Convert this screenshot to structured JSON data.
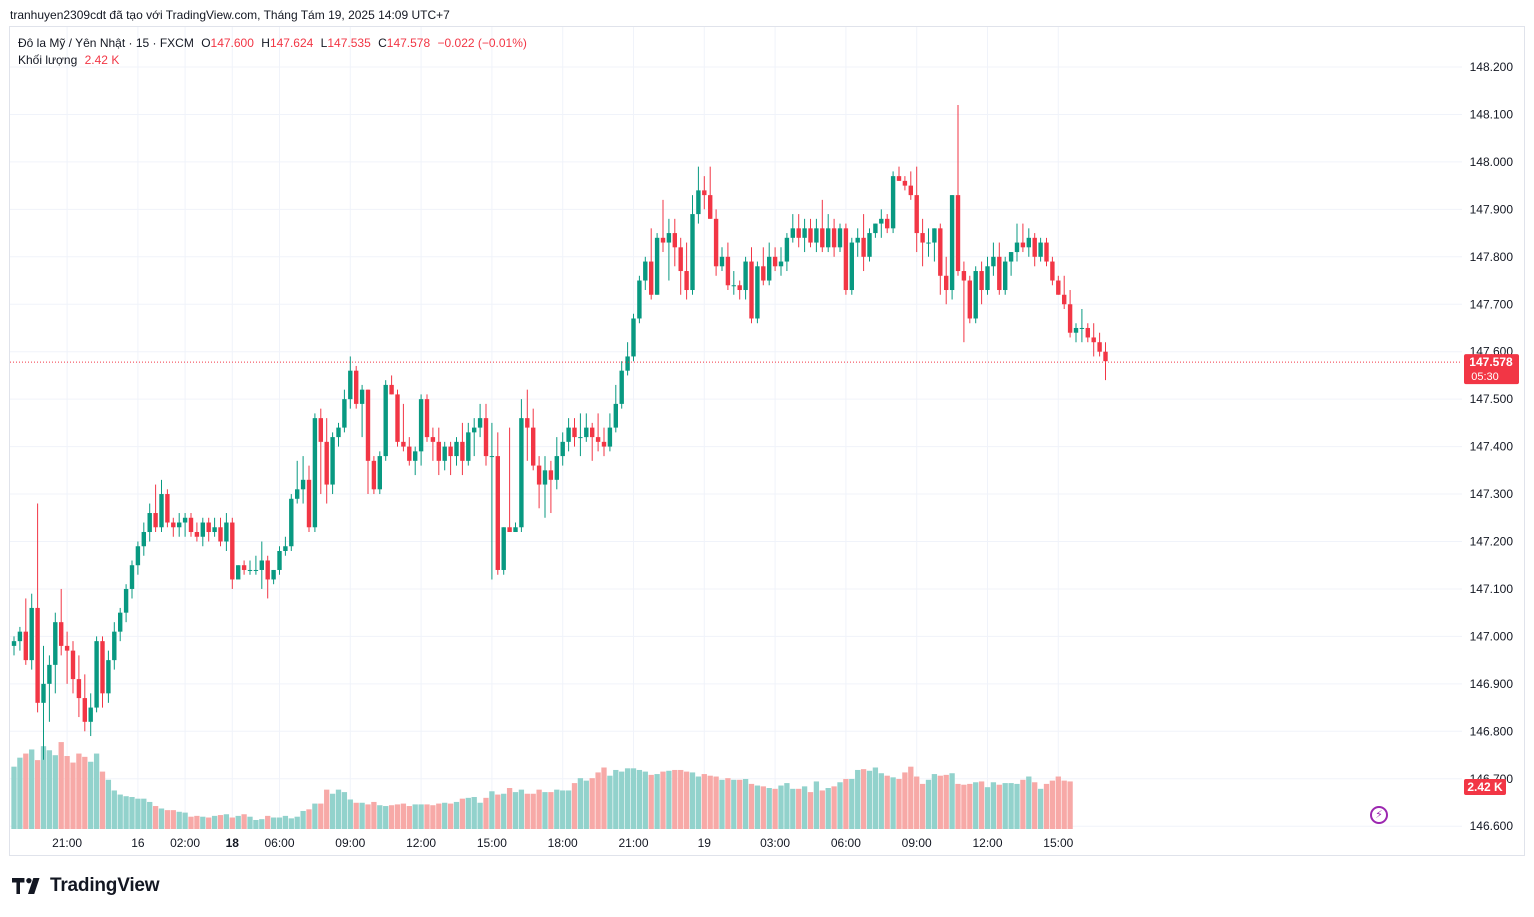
{
  "caption": "tranhuyen2309cdt đã tạo với TradingView.com, Tháng Tám 19, 2025 14:09 UTC+7",
  "legend": {
    "symbol": "Đô la Mỹ / Yên Nhật · 15 · FXCM",
    "o_label": "O",
    "o_value": "147.600",
    "h_label": "H",
    "h_value": "147.624",
    "l_label": "L",
    "l_value": "147.535",
    "c_label": "C",
    "c_value": "147.578",
    "change": "−0.022 (−0.01%)",
    "volume_label": "Khối lượng",
    "volume_value": "2.42 K"
  },
  "price_tag": {
    "price": "147.578",
    "countdown": "05:30"
  },
  "volume_tag": "2.42 K",
  "brand": "TradingView",
  "colors": {
    "up": "#089981",
    "down": "#f23645",
    "vol_up": "#92d2cc",
    "vol_down": "#f7a9a7",
    "grid": "#f0f3fa",
    "axis_text": "#131722"
  },
  "chart_data": {
    "type": "candlestick",
    "title": "Đô la Mỹ / Yên Nhật · 15 · FXCM",
    "interval": "15",
    "ylim": [
      146.6,
      148.25
    ],
    "y_ticks": [
      "148.200",
      "148.100",
      "148.000",
      "147.900",
      "147.800",
      "147.700",
      "147.600",
      "147.500",
      "147.400",
      "147.300",
      "147.200",
      "147.100",
      "147.000",
      "146.900",
      "146.800",
      "146.700",
      "146.600"
    ],
    "x_ticks": [
      {
        "label": "21:00",
        "bar": 9,
        "bold": false
      },
      {
        "label": "16",
        "bar": 21,
        "bold": false
      },
      {
        "label": "02:00",
        "bar": 29,
        "bold": false
      },
      {
        "label": "18",
        "bar": 37,
        "bold": true
      },
      {
        "label": "06:00",
        "bar": 45,
        "bold": false
      },
      {
        "label": "09:00",
        "bar": 57,
        "bold": false
      },
      {
        "label": "12:00",
        "bar": 69,
        "bold": false
      },
      {
        "label": "15:00",
        "bar": 81,
        "bold": false
      },
      {
        "label": "18:00",
        "bar": 93,
        "bold": false
      },
      {
        "label": "21:00",
        "bar": 105,
        "bold": false
      },
      {
        "label": "19",
        "bar": 117,
        "bold": false
      },
      {
        "label": "03:00",
        "bar": 129,
        "bold": false
      },
      {
        "label": "06:00",
        "bar": 141,
        "bold": false
      },
      {
        "label": "09:00",
        "bar": 153,
        "bold": false
      },
      {
        "label": "12:00",
        "bar": 165,
        "bold": false
      },
      {
        "label": "15:00",
        "bar": 177,
        "bold": false
      }
    ],
    "last_price": 147.578,
    "grid": true,
    "candles": [
      [
        146.98,
        147.0,
        146.96,
        146.99
      ],
      [
        146.99,
        147.02,
        146.97,
        147.01
      ],
      [
        147.01,
        147.08,
        146.94,
        146.95
      ],
      [
        146.95,
        147.09,
        146.93,
        147.06
      ],
      [
        147.06,
        147.28,
        146.84,
        146.86
      ],
      [
        146.86,
        146.98,
        146.74,
        146.9
      ],
      [
        146.9,
        146.96,
        146.82,
        146.94
      ],
      [
        146.94,
        147.05,
        146.88,
        147.03
      ],
      [
        147.03,
        147.1,
        146.96,
        146.98
      ],
      [
        146.98,
        147.01,
        146.9,
        146.97
      ],
      [
        146.97,
        146.99,
        146.88,
        146.91
      ],
      [
        146.91,
        146.96,
        146.83,
        146.87
      ],
      [
        146.87,
        146.92,
        146.8,
        146.82
      ],
      [
        146.82,
        146.88,
        146.79,
        146.85
      ],
      [
        146.85,
        147.0,
        146.84,
        146.99
      ],
      [
        146.99,
        147.0,
        146.85,
        146.88
      ],
      [
        146.88,
        146.97,
        146.86,
        146.95
      ],
      [
        146.95,
        147.03,
        146.93,
        147.01
      ],
      [
        147.01,
        147.06,
        146.99,
        147.05
      ],
      [
        147.05,
        147.11,
        147.03,
        147.1
      ],
      [
        147.1,
        147.16,
        147.08,
        147.15
      ],
      [
        147.15,
        147.2,
        147.13,
        147.19
      ],
      [
        147.19,
        147.24,
        147.17,
        147.22
      ],
      [
        147.22,
        147.28,
        147.2,
        147.26
      ],
      [
        147.26,
        147.32,
        147.22,
        147.23
      ],
      [
        147.23,
        147.33,
        147.22,
        147.3
      ],
      [
        147.3,
        147.31,
        147.23,
        147.24
      ],
      [
        147.24,
        147.25,
        147.21,
        147.23
      ],
      [
        147.23,
        147.26,
        147.21,
        147.24
      ],
      [
        147.24,
        147.26,
        147.21,
        147.25
      ],
      [
        147.25,
        147.26,
        147.21,
        147.22
      ],
      [
        147.22,
        147.24,
        147.2,
        147.21
      ],
      [
        147.21,
        147.25,
        147.19,
        147.24
      ],
      [
        147.24,
        147.25,
        147.2,
        147.22
      ],
      [
        147.22,
        147.25,
        147.21,
        147.23
      ],
      [
        147.23,
        147.25,
        147.19,
        147.2
      ],
      [
        147.2,
        147.26,
        147.18,
        147.24
      ],
      [
        147.24,
        147.25,
        147.1,
        147.12
      ],
      [
        147.12,
        147.15,
        147.13,
        147.15
      ],
      [
        147.15,
        147.16,
        147.13,
        147.14
      ],
      [
        147.14,
        147.16,
        147.13,
        147.14
      ],
      [
        147.14,
        147.17,
        147.13,
        147.14
      ],
      [
        147.14,
        147.2,
        147.1,
        147.16
      ],
      [
        147.16,
        147.17,
        147.08,
        147.12
      ],
      [
        147.12,
        147.14,
        147.11,
        147.14
      ],
      [
        147.14,
        147.19,
        147.13,
        147.18
      ],
      [
        147.18,
        147.21,
        147.17,
        147.19
      ],
      [
        147.19,
        147.3,
        147.18,
        147.29
      ],
      [
        147.29,
        147.37,
        147.28,
        147.31
      ],
      [
        147.31,
        147.38,
        147.28,
        147.33
      ],
      [
        147.33,
        147.36,
        147.22,
        147.23
      ],
      [
        147.23,
        147.47,
        147.22,
        147.46
      ],
      [
        147.46,
        147.48,
        147.3,
        147.41
      ],
      [
        147.41,
        147.46,
        147.28,
        147.32
      ],
      [
        147.32,
        147.43,
        147.3,
        147.42
      ],
      [
        147.42,
        147.45,
        147.4,
        147.44
      ],
      [
        147.44,
        147.52,
        147.43,
        147.5
      ],
      [
        147.5,
        147.59,
        147.48,
        147.56
      ],
      [
        147.56,
        147.57,
        147.48,
        147.49
      ],
      [
        147.49,
        147.53,
        147.42,
        147.52
      ],
      [
        147.52,
        147.52,
        147.3,
        147.37
      ],
      [
        147.37,
        147.38,
        147.3,
        147.31
      ],
      [
        147.31,
        147.39,
        147.3,
        147.38
      ],
      [
        147.38,
        147.54,
        147.37,
        147.53
      ],
      [
        147.53,
        147.55,
        147.51,
        147.51
      ],
      [
        147.51,
        147.52,
        147.4,
        147.41
      ],
      [
        147.41,
        147.49,
        147.39,
        147.4
      ],
      [
        147.4,
        147.42,
        147.36,
        147.37
      ],
      [
        147.37,
        147.4,
        147.34,
        147.39
      ],
      [
        147.39,
        147.51,
        147.36,
        147.5
      ],
      [
        147.5,
        147.51,
        147.41,
        147.42
      ],
      [
        147.42,
        147.44,
        147.37,
        147.41
      ],
      [
        147.41,
        147.44,
        147.34,
        147.37
      ],
      [
        147.37,
        147.41,
        147.35,
        147.4
      ],
      [
        147.4,
        147.41,
        147.34,
        147.38
      ],
      [
        147.38,
        147.42,
        147.36,
        147.41
      ],
      [
        147.41,
        147.45,
        147.34,
        147.37
      ],
      [
        147.37,
        147.45,
        147.36,
        147.43
      ],
      [
        147.43,
        147.46,
        147.38,
        147.44
      ],
      [
        147.44,
        147.49,
        147.42,
        147.46
      ],
      [
        147.46,
        147.49,
        147.36,
        147.38
      ],
      [
        147.38,
        147.45,
        147.12,
        147.38
      ],
      [
        147.38,
        147.43,
        147.13,
        147.14
      ],
      [
        147.14,
        147.23,
        147.13,
        147.23
      ],
      [
        147.23,
        147.44,
        147.22,
        147.22
      ],
      [
        147.22,
        147.24,
        147.22,
        147.23
      ],
      [
        147.23,
        147.5,
        147.22,
        147.46
      ],
      [
        147.46,
        147.52,
        147.37,
        147.44
      ],
      [
        147.44,
        147.48,
        147.35,
        147.36
      ],
      [
        147.36,
        147.38,
        147.27,
        147.32
      ],
      [
        147.32,
        147.38,
        147.25,
        147.35
      ],
      [
        147.35,
        147.37,
        147.26,
        147.33
      ],
      [
        147.33,
        147.42,
        147.31,
        147.38
      ],
      [
        147.38,
        147.43,
        147.36,
        147.41
      ],
      [
        147.41,
        147.46,
        147.39,
        147.44
      ],
      [
        147.44,
        147.46,
        147.4,
        147.42
      ],
      [
        147.42,
        147.47,
        147.38,
        147.42
      ],
      [
        147.42,
        147.47,
        147.41,
        147.44
      ],
      [
        147.44,
        147.45,
        147.37,
        147.42
      ],
      [
        147.42,
        147.47,
        147.39,
        147.41
      ],
      [
        147.41,
        147.44,
        147.38,
        147.4
      ],
      [
        147.4,
        147.47,
        147.39,
        147.44
      ],
      [
        147.44,
        147.53,
        147.43,
        147.49
      ],
      [
        147.49,
        147.58,
        147.48,
        147.56
      ],
      [
        147.56,
        147.62,
        147.55,
        147.59
      ],
      [
        147.59,
        147.68,
        147.58,
        147.67
      ],
      [
        147.67,
        147.76,
        147.66,
        147.75
      ],
      [
        147.75,
        147.8,
        147.73,
        147.79
      ],
      [
        147.79,
        147.86,
        147.71,
        147.72
      ],
      [
        147.72,
        147.85,
        147.72,
        147.84
      ],
      [
        147.84,
        147.92,
        147.81,
        147.83
      ],
      [
        147.83,
        147.88,
        147.75,
        147.85
      ],
      [
        147.85,
        147.88,
        147.78,
        147.82
      ],
      [
        147.82,
        147.84,
        147.72,
        147.77
      ],
      [
        147.77,
        147.83,
        147.71,
        147.73
      ],
      [
        147.73,
        147.93,
        147.72,
        147.89
      ],
      [
        147.89,
        147.99,
        147.87,
        147.94
      ],
      [
        147.94,
        147.97,
        147.9,
        147.93
      ],
      [
        147.93,
        147.99,
        147.88,
        147.88
      ],
      [
        147.88,
        147.9,
        147.76,
        147.78
      ],
      [
        147.78,
        147.82,
        147.77,
        147.8
      ],
      [
        147.8,
        147.83,
        147.73,
        147.74
      ],
      [
        147.74,
        147.77,
        147.72,
        147.74
      ],
      [
        147.74,
        147.75,
        147.71,
        147.73
      ],
      [
        147.73,
        147.8,
        147.71,
        147.79
      ],
      [
        147.79,
        147.82,
        147.66,
        147.67
      ],
      [
        147.67,
        147.79,
        147.66,
        147.78
      ],
      [
        147.78,
        147.82,
        147.74,
        147.75
      ],
      [
        147.75,
        147.83,
        147.74,
        147.8
      ],
      [
        147.8,
        147.82,
        147.77,
        147.78
      ],
      [
        147.78,
        147.82,
        147.76,
        147.79
      ],
      [
        147.79,
        147.85,
        147.77,
        147.84
      ],
      [
        147.84,
        147.89,
        147.83,
        147.86
      ],
      [
        147.86,
        147.89,
        147.82,
        147.84
      ],
      [
        147.84,
        147.88,
        147.81,
        147.86
      ],
      [
        147.86,
        147.88,
        147.82,
        147.83
      ],
      [
        147.83,
        147.88,
        147.81,
        147.86
      ],
      [
        147.86,
        147.92,
        147.81,
        147.82
      ],
      [
        147.82,
        147.89,
        147.81,
        147.86
      ],
      [
        147.86,
        147.88,
        147.8,
        147.82
      ],
      [
        147.82,
        147.87,
        147.81,
        147.86
      ],
      [
        147.86,
        147.87,
        147.72,
        147.73
      ],
      [
        147.73,
        147.84,
        147.72,
        147.83
      ],
      [
        147.83,
        147.86,
        147.8,
        147.84
      ],
      [
        147.84,
        147.89,
        147.77,
        147.8
      ],
      [
        147.8,
        147.86,
        147.79,
        147.85
      ],
      [
        147.85,
        147.87,
        147.84,
        147.87
      ],
      [
        147.87,
        147.9,
        147.84,
        147.88
      ],
      [
        147.88,
        147.89,
        147.85,
        147.86
      ],
      [
        147.86,
        147.98,
        147.85,
        147.97
      ],
      [
        147.97,
        147.99,
        147.96,
        147.96
      ],
      [
        147.96,
        147.97,
        147.94,
        147.95
      ],
      [
        147.95,
        147.98,
        147.92,
        147.93
      ],
      [
        147.93,
        147.99,
        147.81,
        147.85
      ],
      [
        147.85,
        147.88,
        147.78,
        147.83
      ],
      [
        147.83,
        147.86,
        147.8,
        147.83
      ],
      [
        147.83,
        147.86,
        147.79,
        147.86
      ],
      [
        147.86,
        147.87,
        147.72,
        147.76
      ],
      [
        147.76,
        147.8,
        147.7,
        147.73
      ],
      [
        147.73,
        147.93,
        147.71,
        147.93
      ],
      [
        147.93,
        148.12,
        147.76,
        147.77
      ],
      [
        147.77,
        147.79,
        147.62,
        147.75
      ],
      [
        147.75,
        147.76,
        147.66,
        147.67
      ],
      [
        147.67,
        147.78,
        147.66,
        147.77
      ],
      [
        147.77,
        147.79,
        147.7,
        147.73
      ],
      [
        147.73,
        147.8,
        147.72,
        147.78
      ],
      [
        147.78,
        147.83,
        147.76,
        147.8
      ],
      [
        147.8,
        147.83,
        147.72,
        147.73
      ],
      [
        147.73,
        147.8,
        147.72,
        147.79
      ],
      [
        147.79,
        147.81,
        147.76,
        147.81
      ],
      [
        147.81,
        147.87,
        147.79,
        147.83
      ],
      [
        147.83,
        147.87,
        147.81,
        147.82
      ],
      [
        147.82,
        147.86,
        147.8,
        147.84
      ],
      [
        147.84,
        147.85,
        147.78,
        147.8
      ],
      [
        147.8,
        147.84,
        147.79,
        147.83
      ],
      [
        147.83,
        147.84,
        147.78,
        147.79
      ],
      [
        147.79,
        147.8,
        147.74,
        147.75
      ],
      [
        147.75,
        147.76,
        147.72,
        147.72
      ],
      [
        147.72,
        147.76,
        147.69,
        147.7
      ],
      [
        147.7,
        147.73,
        147.63,
        147.64
      ],
      [
        147.64,
        147.66,
        147.62,
        147.65
      ],
      [
        147.65,
        147.69,
        147.62,
        147.65
      ],
      [
        147.65,
        147.66,
        147.62,
        147.63
      ],
      [
        147.63,
        147.66,
        147.59,
        147.62
      ],
      [
        147.62,
        147.64,
        147.59,
        147.6
      ],
      [
        147.6,
        147.62,
        147.54,
        147.58
      ]
    ],
    "volume": [
      0.76,
      0.87,
      0.92,
      0.97,
      0.84,
      1.01,
      0.96,
      0.9,
      1.06,
      0.89,
      0.81,
      0.92,
      0.88,
      0.82,
      0.92,
      0.7,
      0.6,
      0.47,
      0.42,
      0.4,
      0.39,
      0.37,
      0.37,
      0.33,
      0.28,
      0.25,
      0.23,
      0.23,
      0.21,
      0.2,
      0.15,
      0.16,
      0.15,
      0.14,
      0.16,
      0.17,
      0.18,
      0.14,
      0.16,
      0.18,
      0.15,
      0.11,
      0.12,
      0.16,
      0.14,
      0.14,
      0.16,
      0.13,
      0.15,
      0.22,
      0.24,
      0.31,
      0.31,
      0.48,
      0.43,
      0.48,
      0.45,
      0.36,
      0.32,
      0.32,
      0.3,
      0.33,
      0.29,
      0.28,
      0.29,
      0.3,
      0.31,
      0.28,
      0.3,
      0.3,
      0.3,
      0.29,
      0.31,
      0.32,
      0.31,
      0.33,
      0.37,
      0.38,
      0.39,
      0.32,
      0.38,
      0.46,
      0.42,
      0.43,
      0.5,
      0.45,
      0.48,
      0.43,
      0.43,
      0.48,
      0.45,
      0.45,
      0.48,
      0.47,
      0.47,
      0.56,
      0.62,
      0.59,
      0.62,
      0.69,
      0.75,
      0.65,
      0.72,
      0.7,
      0.74,
      0.74,
      0.72,
      0.7,
      0.66,
      0.67,
      0.7,
      0.71,
      0.72,
      0.72,
      0.7,
      0.69,
      0.64,
      0.67,
      0.65,
      0.64,
      0.6,
      0.62,
      0.6,
      0.6,
      0.61,
      0.55,
      0.53,
      0.52,
      0.5,
      0.49,
      0.53,
      0.56,
      0.49,
      0.49,
      0.52,
      0.45,
      0.58,
      0.47,
      0.5,
      0.52,
      0.57,
      0.61,
      0.61,
      0.72,
      0.73,
      0.71,
      0.75,
      0.68,
      0.65,
      0.63,
      0.61,
      0.69,
      0.76,
      0.64,
      0.55,
      0.6,
      0.67,
      0.65,
      0.66,
      0.68,
      0.55,
      0.54,
      0.55,
      0.57,
      0.58,
      0.51,
      0.57,
      0.54,
      0.56,
      0.56,
      0.55,
      0.6,
      0.64,
      0.57,
      0.49,
      0.55,
      0.59,
      0.64,
      0.59,
      0.58
    ]
  }
}
